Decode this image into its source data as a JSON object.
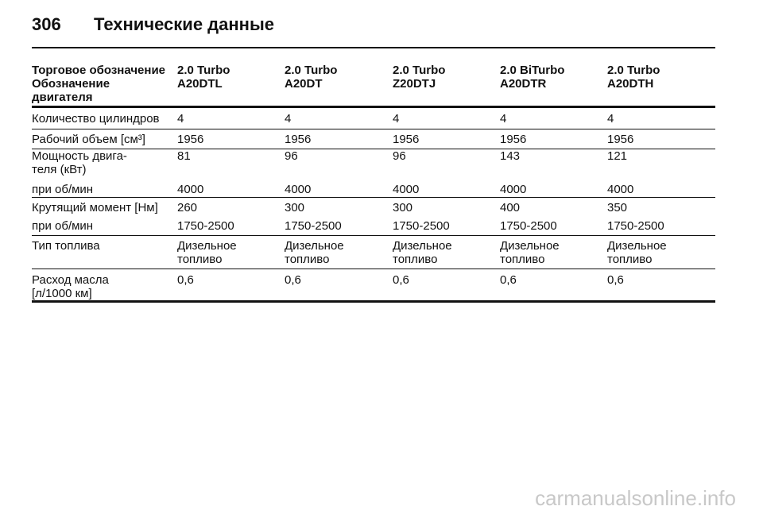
{
  "header": {
    "page_number": "306",
    "title": "Технические данные"
  },
  "table": {
    "rows": [
      [
        "Торговое обозначение",
        "2.0 Turbo",
        "2.0 Turbo",
        "2.0 Turbo",
        "2.0 BiTurbo",
        "2.0 Turbo"
      ],
      [
        "Обозначение\nдвигателя",
        "A20DTL",
        "A20DT",
        "Z20DTJ",
        "A20DTR",
        "A20DTH"
      ],
      [
        "Количество цилиндров",
        "4",
        "4",
        "4",
        "4",
        "4"
      ],
      [
        "Рабочий объем [см³]",
        "1956",
        "1956",
        "1956",
        "1956",
        "1956"
      ],
      [
        "Мощность двига-\nтеля (кВт)",
        "81",
        "96",
        "96",
        "143",
        "121"
      ],
      [
        "при об/мин",
        "4000",
        "4000",
        "4000",
        "4000",
        "4000"
      ],
      [
        "Крутящий момент [Нм]",
        "260",
        "300",
        "300",
        "400",
        "350"
      ],
      [
        "при об/мин",
        "1750-2500",
        "1750-2500",
        "1750-2500",
        "1750-2500",
        "1750-2500"
      ],
      [
        "Тип топлива",
        "Дизельное\nтопливо",
        "Дизельное\nтопливо",
        "Дизельное\nтопливо",
        "Дизельное\nтопливо",
        "Дизельное\nтопливо"
      ],
      [
        "Расход масла\n[л/1000 км]",
        "0,6",
        "0,6",
        "0,6",
        "0,6",
        "0,6"
      ]
    ]
  },
  "watermark": "carmanualsonline.info"
}
